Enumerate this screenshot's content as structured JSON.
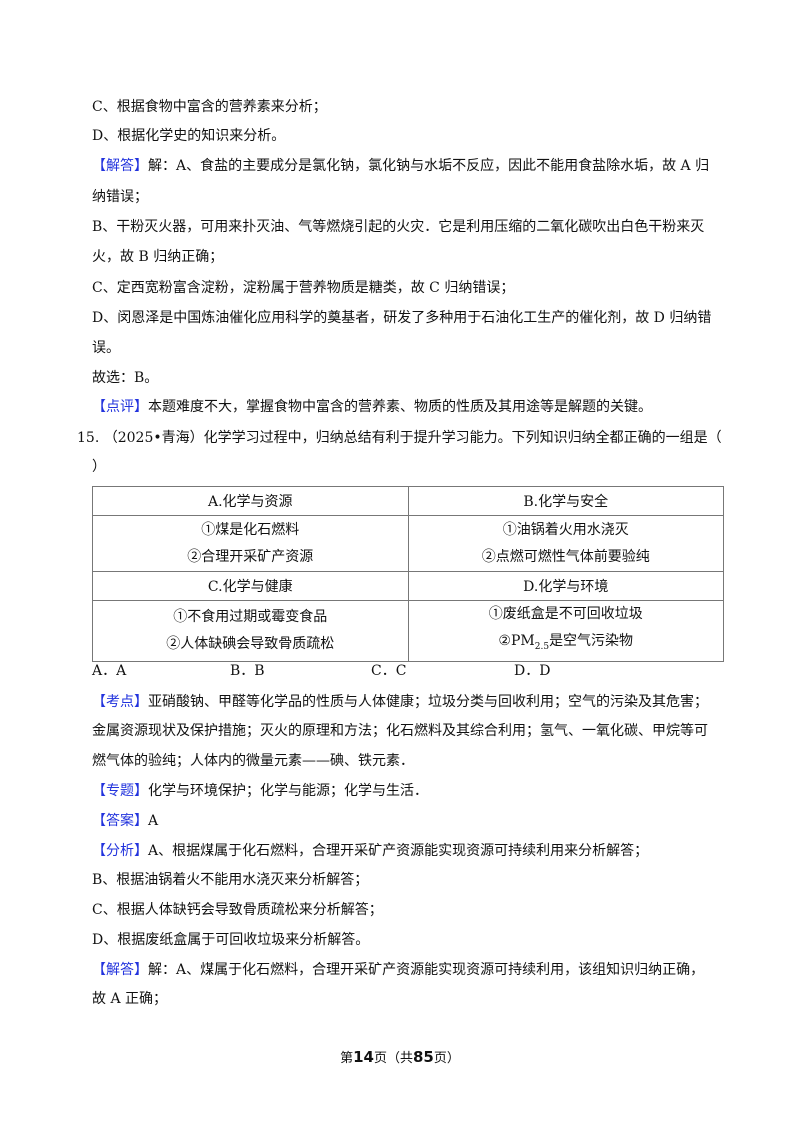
{
  "lines_top": [
    {
      "text": "C、根据食物中富含的营养素来分析；"
    },
    {
      "text": "D、根据化学史的知识来分析。"
    },
    {
      "label": "【解答】",
      "text": "解：A、食盐的主要成分是氯化钠，氯化钠与水垢不反应，因此不能用食盐除水垢，故 A 归"
    },
    {
      "text": "纳错误；"
    },
    {
      "text": "B、干粉灭火器，可用来扑灭油、气等燃烧引起的火灾．它是利用压缩的二氧化碳吹出白色干粉来灭"
    },
    {
      "text": "火，故 B 归纳正确；"
    },
    {
      "text": "C、定西宽粉富含淀粉，淀粉属于营养物质是糖类，故 C 归纳错误；"
    },
    {
      "text": "D、闵恩泽是中国炼油催化应用科学的奠基者，研发了多种用于石油化工生产的催化剂，故 D 归纳错"
    },
    {
      "text": "误。"
    },
    {
      "text": "故选：B。"
    },
    {
      "label": "【点评】",
      "text": "本题难度不大，掌握食物中富含的营养素、物质的性质及其用途等是解题的关键。"
    }
  ],
  "question": {
    "number": "15.",
    "text": "（2025•青海）化学学习过程中，归纳总结有利于提升学习能力。下列知识归纳全都正确的一组是（",
    "paren_close": "）",
    "table": {
      "A_title": "A.化学与资源",
      "A_1": "①煤是化石燃料",
      "A_2": "②合理开采矿产资源",
      "B_title": "B.化学与安全",
      "B_1": "①油锅着火用水浇灭",
      "B_2": "②点燃可燃性气体前要验纯",
      "C_title": "C.化学与健康",
      "C_1": "①不食用过期或霉变食品",
      "C_2": "②人体缺碘会导致骨质疏松",
      "D_title": "D.化学与环境",
      "D_1": "①废纸盒是不可回收垃圾",
      "D_2_pre": "②PM",
      "D_2_sub": "2.5",
      "D_2_post": "是空气污染物"
    },
    "options": [
      "A．A",
      "B．B",
      "C．C",
      "D．D"
    ]
  },
  "lines_bottom": [
    {
      "label": "【考点】",
      "text": "亚硝酸钠、甲醛等化学品的性质与人体健康；垃圾分类与回收利用；空气的污染及其危害；"
    },
    {
      "text": "金属资源现状及保护措施；灭火的原理和方法；化石燃料及其综合利用；氢气、一氧化碳、甲烷等可"
    },
    {
      "text": "燃气体的验纯；人体内的微量元素——碘、铁元素．"
    },
    {
      "label": "【专题】",
      "text": "化学与环境保护；化学与能源；化学与生活．"
    },
    {
      "label": "【答案】",
      "text": "A"
    },
    {
      "label": "【分析】",
      "text": "A、根据煤属于化石燃料，合理开采矿产资源能实现资源可持续利用来分析解答；"
    },
    {
      "text": "B、根据油锅着火不能用水浇灭来分析解答；"
    },
    {
      "text": "C、根据人体缺钙会导致骨质疏松来分析解答；"
    },
    {
      "text": "D、根据废纸盒属于可回收垃圾来分析解答。"
    },
    {
      "label": "【解答】",
      "text": "解：A、煤属于化石燃料，合理开采矿产资源能实现资源可持续利用，该组知识归纳正确，"
    },
    {
      "text": "故 A 正确；"
    }
  ],
  "footer": {
    "pre": "第",
    "page": "14",
    "mid": "页（共",
    "total": "85",
    "post": "页）"
  },
  "colors": {
    "label": "#2233dd",
    "text": "#111111"
  }
}
